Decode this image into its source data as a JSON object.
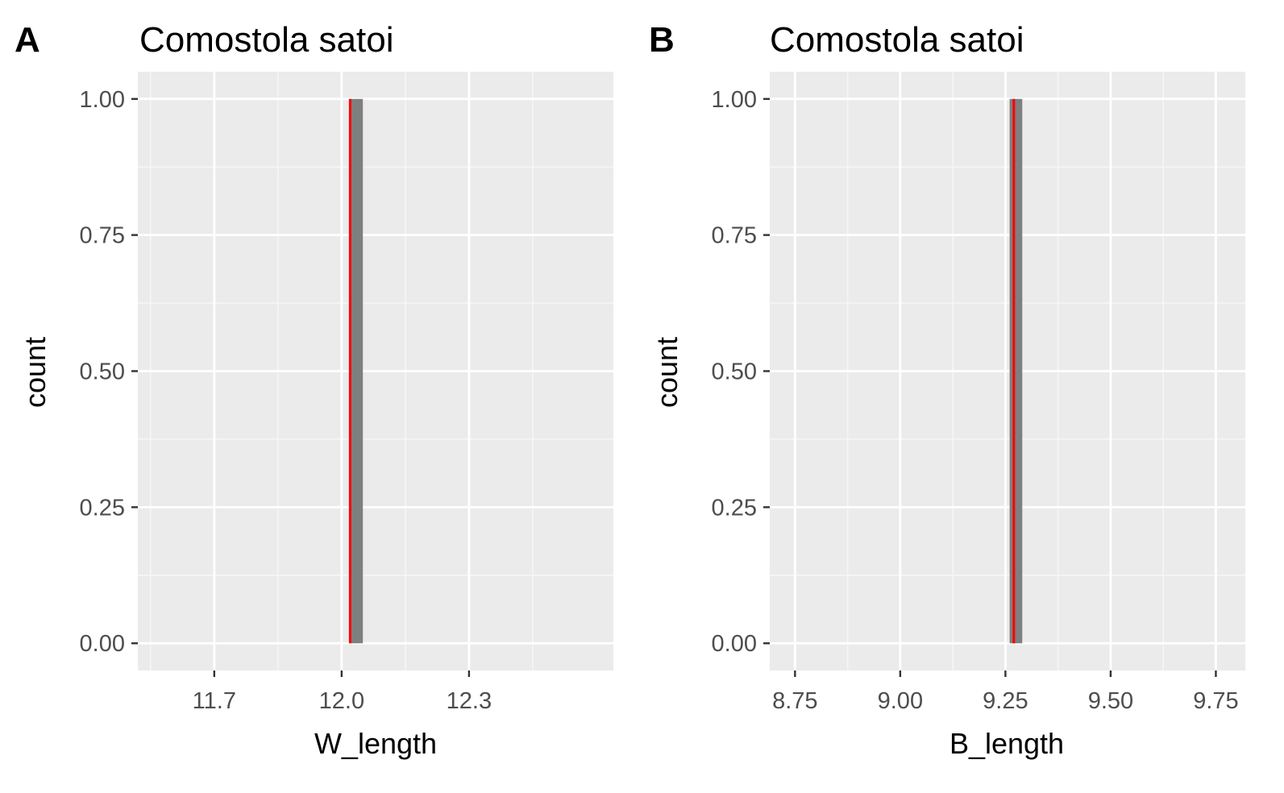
{
  "chart_data": [
    {
      "type": "bar",
      "panel_label": "A",
      "title": "Comostola satoi",
      "xlabel": "W_length",
      "ylabel": "count",
      "xlim": [
        11.52,
        12.64
      ],
      "ylim": [
        -0.05,
        1.05
      ],
      "x_ticks": [
        {
          "value": 11.7,
          "label": "11.7"
        },
        {
          "value": 12.0,
          "label": "12.0"
        },
        {
          "value": 12.3,
          "label": "12.3"
        }
      ],
      "x_minor": [
        11.55,
        11.85,
        12.15,
        12.45
      ],
      "y_ticks": [
        {
          "value": 0,
          "label": "0.00"
        },
        {
          "value": 0.25,
          "label": "0.25"
        },
        {
          "value": 0.5,
          "label": "0.50"
        },
        {
          "value": 0.75,
          "label": "0.75"
        },
        {
          "value": 1,
          "label": "1.00"
        }
      ],
      "y_minor": [
        0.125,
        0.375,
        0.625,
        0.875
      ],
      "bars": [
        {
          "x_start": 12.02,
          "x_end": 12.05,
          "count": 1
        }
      ],
      "vline": {
        "x": 12.02,
        "color": "#ff0000"
      },
      "grid": true
    },
    {
      "type": "bar",
      "panel_label": "B",
      "title": "Comostola satoi",
      "xlabel": "B_length",
      "ylabel": "count",
      "xlim": [
        8.69,
        9.82
      ],
      "ylim": [
        -0.05,
        1.05
      ],
      "x_ticks": [
        {
          "value": 8.75,
          "label": "8.75"
        },
        {
          "value": 9.0,
          "label": "9.00"
        },
        {
          "value": 9.25,
          "label": "9.25"
        },
        {
          "value": 9.5,
          "label": "9.50"
        },
        {
          "value": 9.75,
          "label": "9.75"
        }
      ],
      "x_minor": [
        8.875,
        9.125,
        9.375,
        9.625
      ],
      "y_ticks": [
        {
          "value": 0,
          "label": "0.00"
        },
        {
          "value": 0.25,
          "label": "0.25"
        },
        {
          "value": 0.5,
          "label": "0.50"
        },
        {
          "value": 0.75,
          "label": "0.75"
        },
        {
          "value": 1,
          "label": "1.00"
        }
      ],
      "y_minor": [
        0.125,
        0.375,
        0.625,
        0.875
      ],
      "bars": [
        {
          "x_start": 9.26,
          "x_end": 9.29,
          "count": 1
        }
      ],
      "vline": {
        "x": 9.27,
        "color": "#ff0000"
      },
      "grid": true
    }
  ],
  "colors": {
    "panel_background": "#ebebeb",
    "grid_major": "#ffffff",
    "grid_minor": "#f7f7f7",
    "bar_fill": "#7f7f7f",
    "tick_mark": "#333333"
  }
}
